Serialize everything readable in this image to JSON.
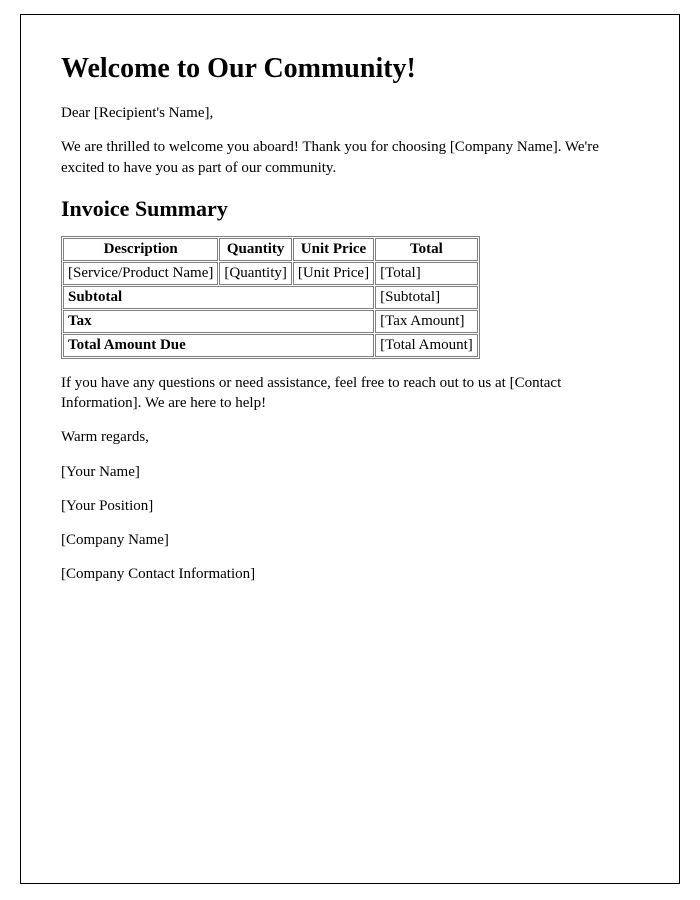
{
  "heading": "Welcome to Our Community!",
  "greeting": "Dear [Recipient's Name],",
  "intro": "We are thrilled to welcome you aboard! Thank you for choosing [Company Name]. We're excited to have you as part of our community.",
  "section_title": "Invoice Summary",
  "table": {
    "headers": {
      "description": "Description",
      "quantity": "Quantity",
      "unit_price": "Unit Price",
      "total": "Total"
    },
    "row1": {
      "description": "[Service/Product Name]",
      "quantity": "[Quantity]",
      "unit_price": "[Unit Price]",
      "total": "[Total]"
    },
    "subtotal": {
      "label": "Subtotal",
      "value": "[Subtotal]"
    },
    "tax": {
      "label": "Tax",
      "value": "[Tax Amount]"
    },
    "total_due": {
      "label": "Total Amount Due",
      "value": "[Total Amount]"
    }
  },
  "help_text": "If you have any questions or need assistance, feel free to reach out to us at [Contact Information]. We are here to help!",
  "closing": "Warm regards,",
  "signature": {
    "name": "[Your Name]",
    "position": "[Your Position]",
    "company": "[Company Name]",
    "contact": "[Company Contact Information]"
  },
  "styles": {
    "page_border_color": "#000000",
    "table_border_color": "#808080",
    "background_color": "#ffffff",
    "text_color": "#000000",
    "h1_fontsize": 28,
    "h2_fontsize": 22,
    "body_fontsize": 15
  }
}
